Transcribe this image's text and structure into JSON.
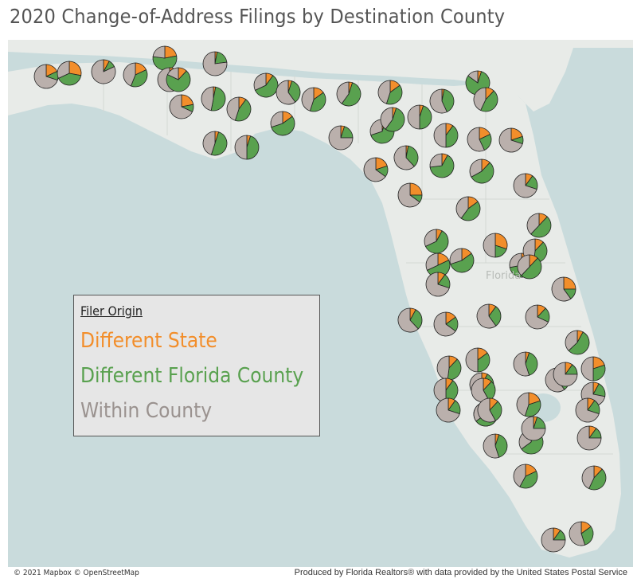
{
  "title": "2020 Change-of-Address Filings by Destination County",
  "legend": {
    "title": "Filer Origin",
    "items": [
      {
        "label": "Different State",
        "color": "#f28e2b"
      },
      {
        "label": "Different Florida County",
        "color": "#59a14f"
      },
      {
        "label": "Within County",
        "color": "#bab0ac"
      }
    ]
  },
  "map_label": "Florida",
  "attribution": "© 2021 Mapbox © OpenStreetMap",
  "credit": "Produced by Florida Realtors® with data provided by the United States Postal Service",
  "colors": {
    "water": "#c9dbdc",
    "land": "#e8ebe8",
    "orange": "#f28e2b",
    "green": "#59a14f",
    "gray": "#bab0ac"
  },
  "county_pies_fraction_shares": [
    [
      0.18,
      0.12
    ],
    [
      0.28,
      0.4
    ],
    [
      0.08,
      0.1
    ],
    [
      0.18,
      0.38
    ],
    [
      0.22,
      0.55
    ],
    [
      0.1,
      0.15
    ],
    [
      0.12,
      0.7
    ],
    [
      0.22,
      0.1
    ],
    [
      0.03,
      0.5
    ],
    [
      0.1,
      0.45
    ],
    [
      0.03,
      0.2
    ],
    [
      0.1,
      0.58
    ],
    [
      0.05,
      0.35
    ],
    [
      0.15,
      0.4
    ],
    [
      0.05,
      0.55
    ],
    [
      0.15,
      0.4
    ],
    [
      0.05,
      0.45
    ],
    [
      0.03,
      0.4
    ],
    [
      0.05,
      0.8
    ],
    [
      0.12,
      0.45
    ],
    [
      0.05,
      0.5
    ],
    [
      0.05,
      0.45
    ],
    [
      0.15,
      0.55
    ],
    [
      0.05,
      0.2
    ],
    [
      0.2,
      0.15
    ],
    [
      0.03,
      0.35
    ],
    [
      0.05,
      0.65
    ],
    [
      0.05,
      0.55
    ],
    [
      0.1,
      0.4
    ],
    [
      0.18,
      0.25
    ],
    [
      0.2,
      0.1
    ],
    [
      0.08,
      0.65
    ],
    [
      0.12,
      0.55
    ],
    [
      0.1,
      0.2
    ],
    [
      0.25,
      0.1
    ],
    [
      0.15,
      0.45
    ],
    [
      0.12,
      0.5
    ],
    [
      0.08,
      0.6
    ],
    [
      0.18,
      0.5
    ],
    [
      0.15,
      0.55
    ],
    [
      0.3,
      0.2
    ],
    [
      0.12,
      0.6
    ],
    [
      0.12,
      0.4
    ],
    [
      0.12,
      0.5
    ],
    [
      0.25,
      0.15
    ],
    [
      0.1,
      0.2
    ],
    [
      0.08,
      0.3
    ],
    [
      0.15,
      0.2
    ],
    [
      0.1,
      0.3
    ],
    [
      0.12,
      0.2
    ],
    [
      0.08,
      0.55
    ],
    [
      0.12,
      0.4
    ],
    [
      0.15,
      0.35
    ],
    [
      0.3,
      0.4
    ],
    [
      0.05,
      0.4
    ],
    [
      0.1,
      0.3
    ],
    [
      0.2,
      0.3
    ],
    [
      0.08,
      0.35
    ],
    [
      0.12,
      0.3
    ],
    [
      0.3,
      0.35
    ],
    [
      0.1,
      0.4
    ],
    [
      0.2,
      0.35
    ],
    [
      0.05,
      0.4
    ],
    [
      0.05,
      0.6
    ],
    [
      0.1,
      0.15
    ],
    [
      0.18,
      0.4
    ],
    [
      0.12,
      0.45
    ],
    [
      0.1,
      0.15
    ],
    [
      0.15,
      0.3
    ],
    [
      0.08,
      0.2
    ],
    [
      0.1,
      0.2
    ],
    [
      0.1,
      0.15
    ],
    [
      0.05,
      0.2
    ],
    [
      0.1,
      0.2
    ],
    [
      0.12,
      0.3
    ]
  ]
}
